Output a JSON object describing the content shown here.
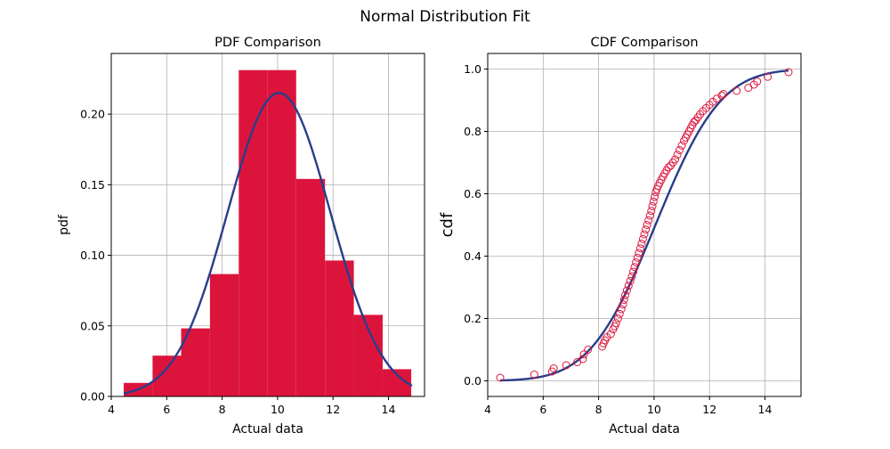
{
  "figure": {
    "title": "Normal Distribution Fit"
  },
  "colors": {
    "bars": "#DC143C",
    "fit_line": "#283E8A",
    "points": "#DC143C",
    "grid": "#B0B0B0"
  },
  "chart_data": [
    {
      "type": "bar",
      "title": "PDF Comparison",
      "xlabel": "Actual data",
      "ylabel": "pdf",
      "xlim": [
        4.0,
        15.3
      ],
      "ylim": [
        0.0,
        0.243
      ],
      "xticks": [
        4,
        6,
        8,
        10,
        12,
        14
      ],
      "yticks": [
        0.0,
        0.05,
        0.1,
        0.15,
        0.2
      ],
      "ytick_labels": [
        "0.00",
        "0.05",
        "0.10",
        "0.15",
        "0.20"
      ],
      "grid": true,
      "bins": [
        {
          "x0": 4.45,
          "x1": 5.49,
          "value": 0.0096
        },
        {
          "x0": 5.49,
          "x1": 6.52,
          "value": 0.0289
        },
        {
          "x0": 6.52,
          "x1": 7.56,
          "value": 0.0482
        },
        {
          "x0": 7.56,
          "x1": 8.6,
          "value": 0.0867
        },
        {
          "x0": 8.6,
          "x1": 9.64,
          "value": 0.2312
        },
        {
          "x0": 9.64,
          "x1": 10.67,
          "value": 0.2312
        },
        {
          "x0": 10.67,
          "x1": 11.71,
          "value": 0.1541
        },
        {
          "x0": 11.71,
          "x1": 12.75,
          "value": 0.0963
        },
        {
          "x0": 12.75,
          "x1": 13.79,
          "value": 0.0578
        },
        {
          "x0": 13.79,
          "x1": 14.82,
          "value": 0.0193
        }
      ],
      "fit": {
        "type": "normal_pdf",
        "mean": 10.05,
        "std": 1.855,
        "x_range": [
          4.45,
          14.85
        ]
      }
    },
    {
      "type": "scatter",
      "title": "CDF Comparison",
      "xlabel": "Actual data",
      "ylabel": "cdf",
      "xlim": [
        4.0,
        15.3
      ],
      "ylim": [
        -0.05,
        1.05
      ],
      "xticks": [
        4,
        6,
        8,
        10,
        12,
        14
      ],
      "yticks": [
        0.0,
        0.2,
        0.4,
        0.6,
        0.8,
        1.0
      ],
      "ytick_labels": [
        "0.0",
        "0.2",
        "0.4",
        "0.6",
        "0.8",
        "1.0"
      ],
      "grid": true,
      "points": {
        "x": [
          4.45,
          5.68,
          6.32,
          6.38,
          6.83,
          7.23,
          7.43,
          7.47,
          7.62,
          8.13,
          8.18,
          8.23,
          8.3,
          8.44,
          8.52,
          8.58,
          8.63,
          8.7,
          8.76,
          8.82,
          8.88,
          8.92,
          8.96,
          9.02,
          9.08,
          9.14,
          9.2,
          9.25,
          9.3,
          9.35,
          9.4,
          9.45,
          9.5,
          9.55,
          9.6,
          9.65,
          9.7,
          9.75,
          9.8,
          9.85,
          9.9,
          9.94,
          9.98,
          10.02,
          10.06,
          10.1,
          10.15,
          10.2,
          10.26,
          10.32,
          10.38,
          10.45,
          10.52,
          10.6,
          10.68,
          10.76,
          10.84,
          10.92,
          11.0,
          11.08,
          11.14,
          11.2,
          11.26,
          11.32,
          11.38,
          11.44,
          11.5,
          11.58,
          11.66,
          11.76,
          11.88,
          12.0,
          12.12,
          12.26,
          12.44,
          12.5,
          12.98,
          13.4,
          13.6,
          13.72,
          14.1,
          14.85
        ],
        "y": [
          0.01,
          0.02,
          0.03,
          0.04,
          0.05,
          0.06,
          0.07,
          0.085,
          0.1,
          0.11,
          0.12,
          0.13,
          0.14,
          0.15,
          0.165,
          0.175,
          0.185,
          0.2,
          0.215,
          0.23,
          0.245,
          0.26,
          0.275,
          0.29,
          0.305,
          0.32,
          0.335,
          0.35,
          0.365,
          0.38,
          0.395,
          0.41,
          0.425,
          0.44,
          0.455,
          0.47,
          0.485,
          0.5,
          0.515,
          0.53,
          0.545,
          0.56,
          0.575,
          0.59,
          0.605,
          0.615,
          0.625,
          0.635,
          0.645,
          0.655,
          0.665,
          0.675,
          0.685,
          0.69,
          0.7,
          0.71,
          0.725,
          0.74,
          0.755,
          0.77,
          0.78,
          0.79,
          0.8,
          0.81,
          0.82,
          0.83,
          0.835,
          0.845,
          0.855,
          0.865,
          0.875,
          0.885,
          0.895,
          0.905,
          0.915,
          0.92,
          0.93,
          0.94,
          0.95,
          0.96,
          0.975,
          0.99
        ]
      },
      "fit": {
        "type": "normal_cdf",
        "mean": 10.05,
        "std": 1.855,
        "x_range": [
          4.45,
          14.85
        ]
      }
    }
  ]
}
